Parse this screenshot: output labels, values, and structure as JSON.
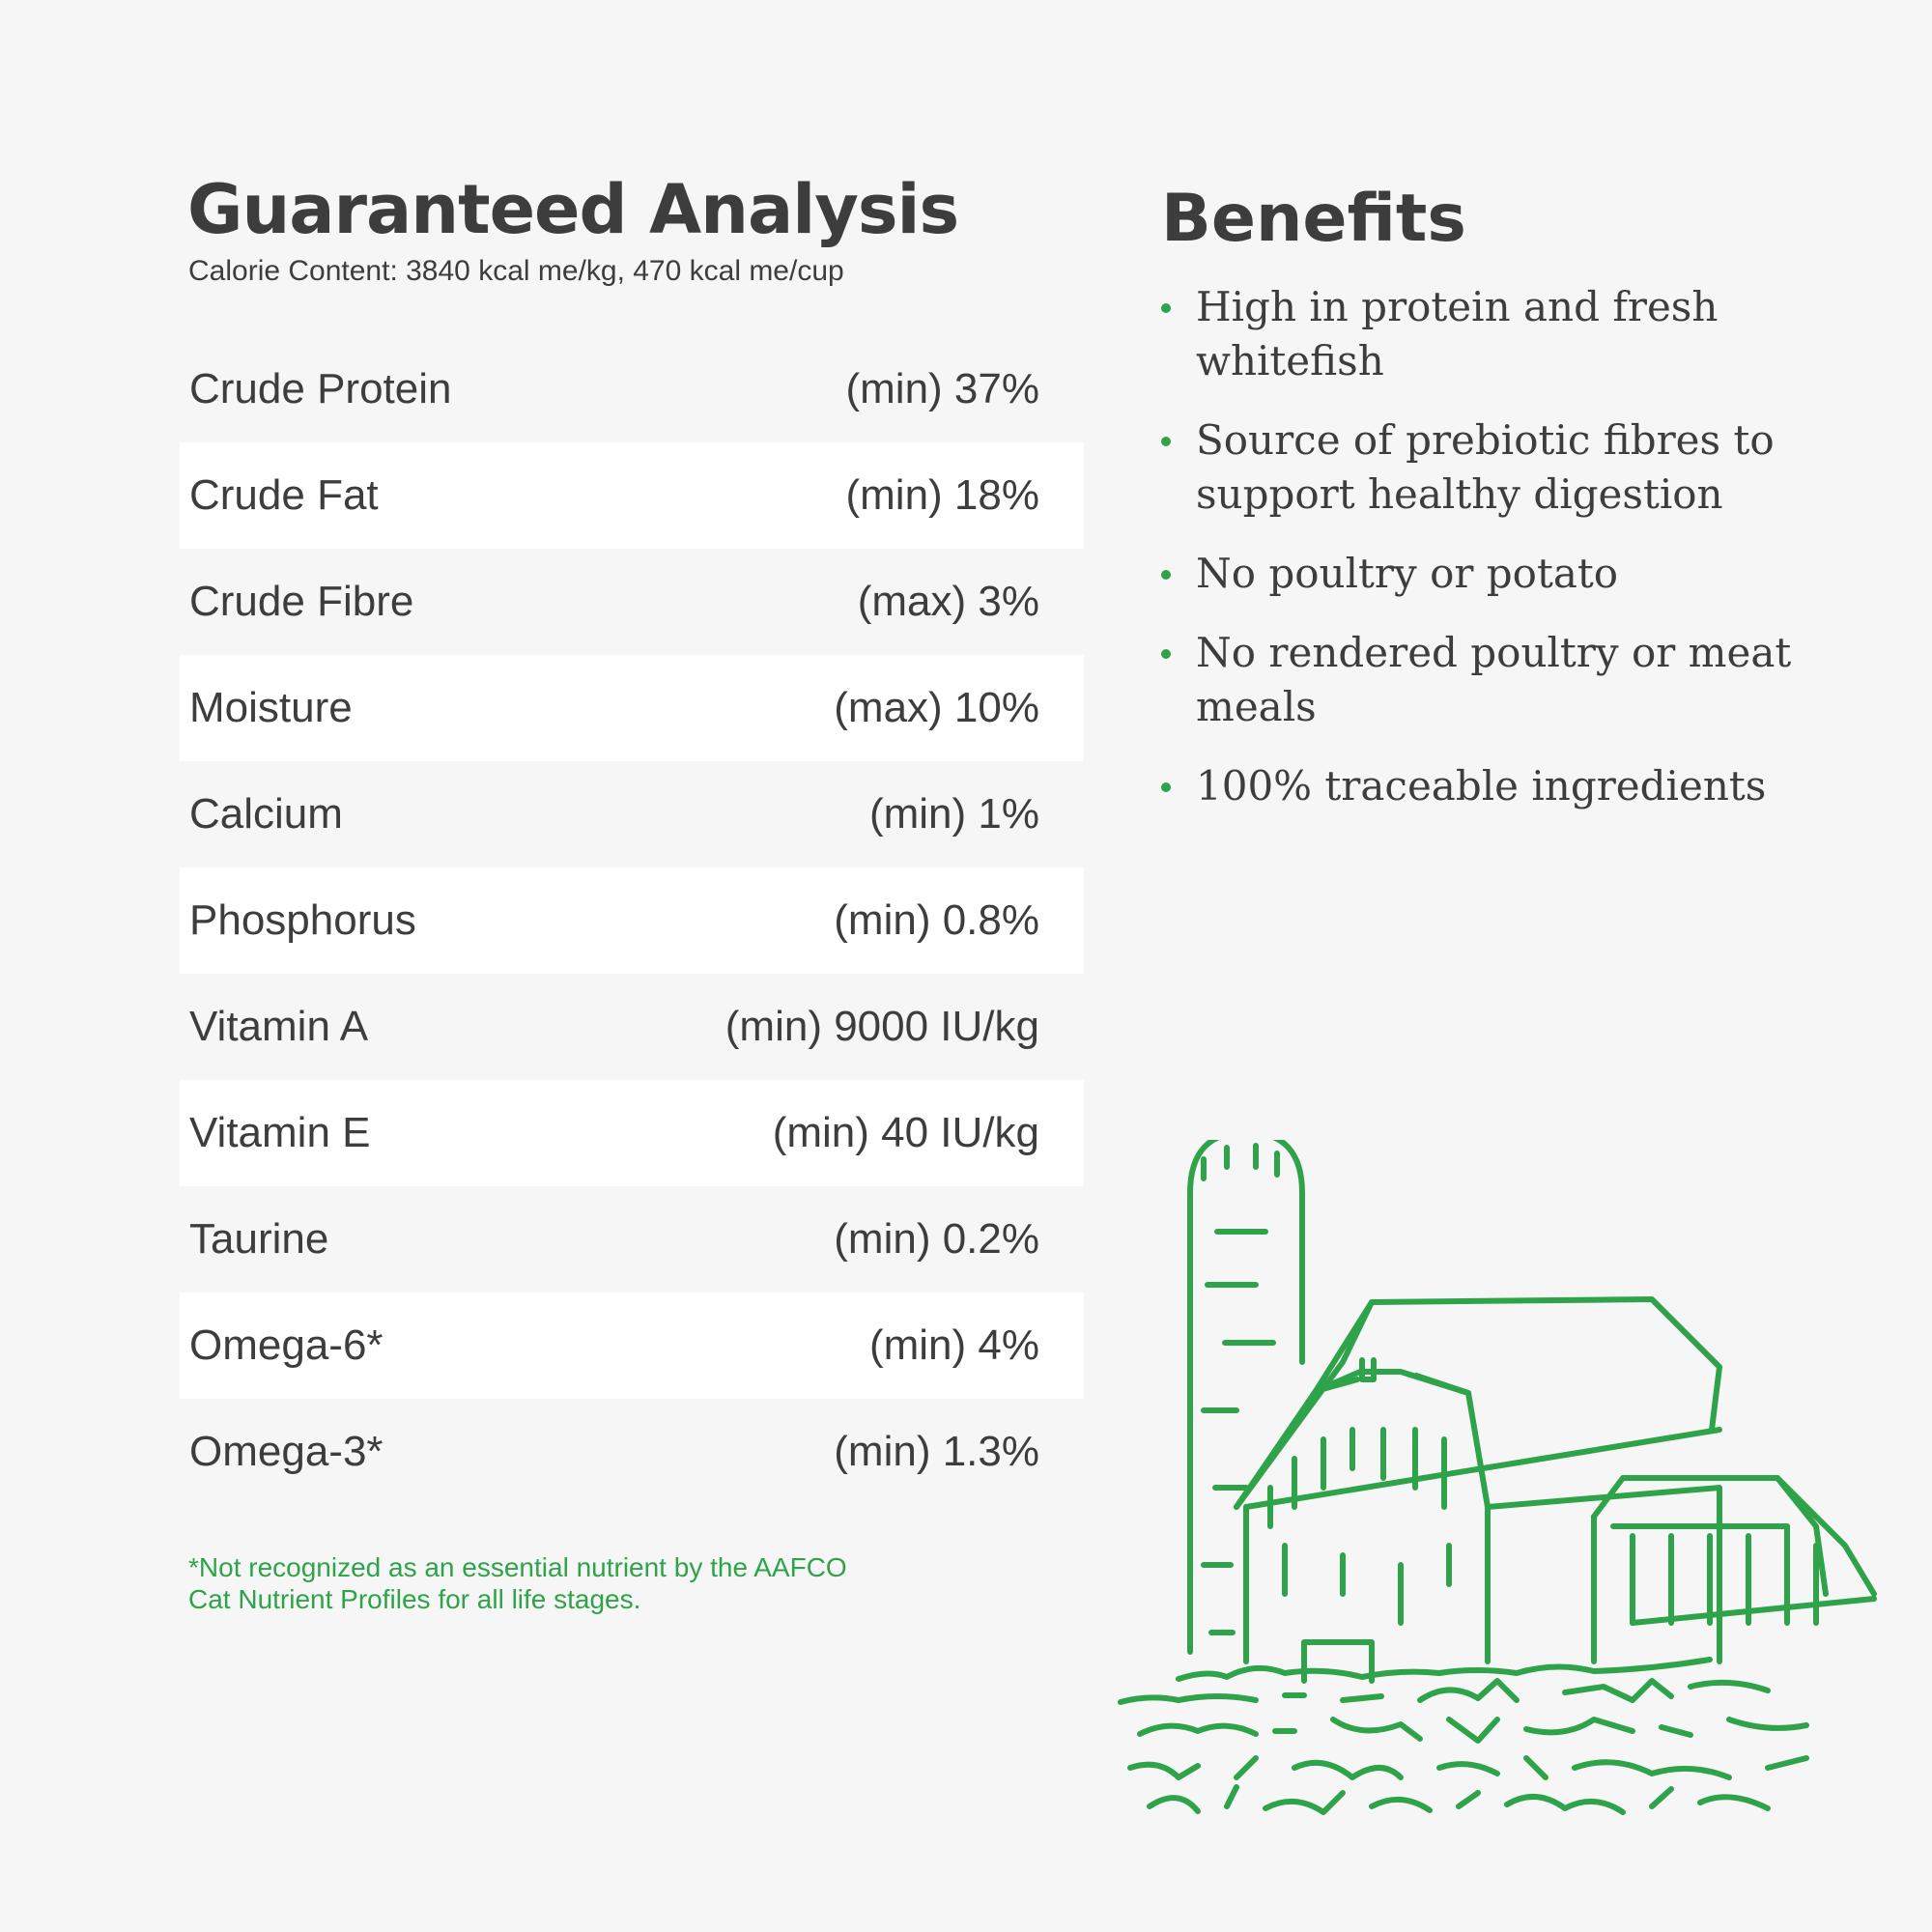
{
  "analysis": {
    "title": "Guaranteed Analysis",
    "calorie_content": "Calorie Content: 3840 kcal me/kg, 470 kcal me/cup",
    "rows": [
      {
        "name": "Crude Protein",
        "value": "(min) 37%"
      },
      {
        "name": "Crude Fat",
        "value": "(min) 18%"
      },
      {
        "name": "Crude Fibre",
        "value": "(max) 3%"
      },
      {
        "name": "Moisture",
        "value": "(max) 10%"
      },
      {
        "name": "Calcium",
        "value": "(min) 1%"
      },
      {
        "name": "Phosphorus",
        "value": "(min) 0.8%"
      },
      {
        "name": "Vitamin A",
        "value": "(min) 9000 IU/kg"
      },
      {
        "name": "Vitamin E",
        "value": "(min) 40 IU/kg"
      },
      {
        "name": "Taurine",
        "value": "(min) 0.2%"
      },
      {
        "name": "Omega-6*",
        "value": "(min) 4%"
      },
      {
        "name": "Omega-3*",
        "value": "(min) 1.3%"
      }
    ],
    "footnote": "*Not recognized as an essential nutrient by the AAFCO Cat Nutrient Profiles for all life stages."
  },
  "benefits": {
    "title": "Benefits",
    "items": [
      "High in protein and fresh whitefish",
      "Source of prebiotic fibres to support healthy digestion",
      "No poultry or potato",
      "No rendered poultry or meat meals",
      "100% traceable ingredients"
    ]
  },
  "colors": {
    "accent_green": "#2fa34a",
    "text": "#3d3d3d",
    "background": "#f6f6f6",
    "row_shade": "#ffffff"
  },
  "illustration": {
    "icon": "farm-barn-silo-icon"
  }
}
